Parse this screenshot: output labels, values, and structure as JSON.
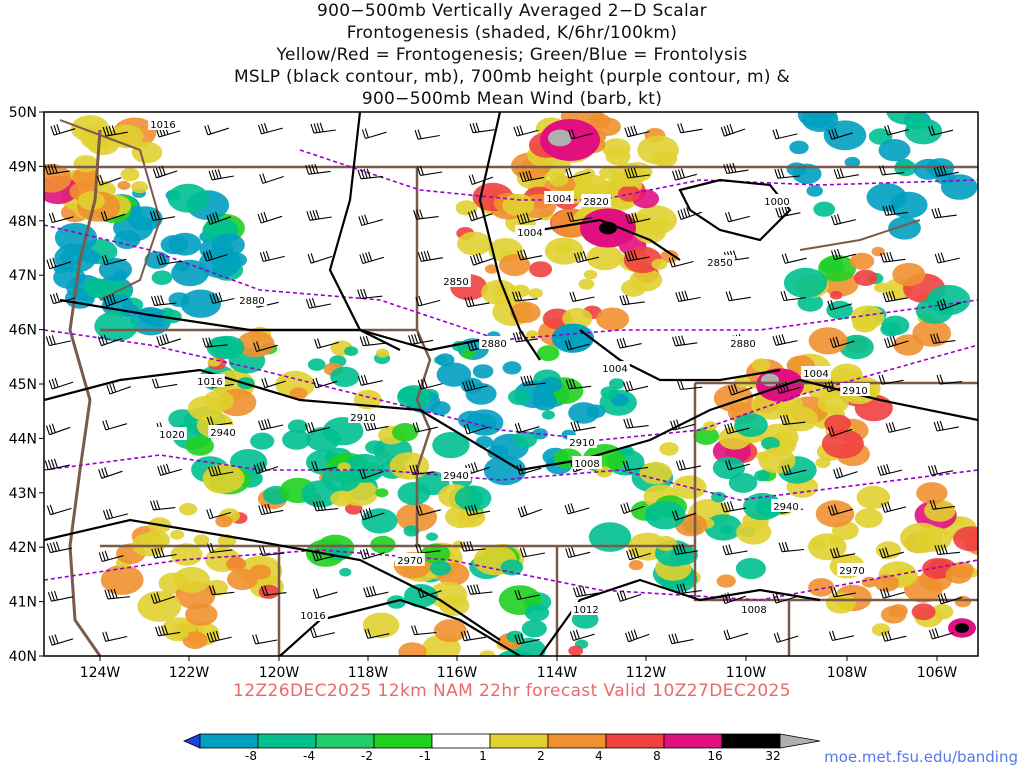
{
  "title_lines": [
    "900−500mb Vertically Averaged 2−D Scalar",
    "Frontogenesis (shaded, K/6hr/100km)",
    "Yellow/Red = Frontogenesis;  Green/Blue = Frontolysis",
    "MSLP (black contour, mb), 700mb height (purple contour, m) &",
    "900−500mb Mean Wind (barb, kt)"
  ],
  "footer": "12Z26DEC2025 12km NAM 22hr forecast Valid 10Z27DEC2025",
  "credit": "moe.met.fsu.edu/banding",
  "map": {
    "lon_range": [
      -125.0,
      -105.0
    ],
    "lat_range": [
      40.0,
      50.0
    ],
    "lat_labels": [
      "50N",
      "49N",
      "48N",
      "47N",
      "46N",
      "45N",
      "44N",
      "43N",
      "42N",
      "41N",
      "40N"
    ],
    "lon_labels": [
      "124W",
      "122W",
      "120W",
      "118W",
      "116W",
      "114W",
      "112W",
      "110W",
      "108W",
      "106W"
    ],
    "mslp_labels": [
      "1016",
      "1004",
      "1004",
      "1000",
      "1004",
      "1016",
      "1020",
      "1004",
      "1008",
      "1012",
      "1016",
      "1008"
    ],
    "height_labels": [
      "2820",
      "2850",
      "2850",
      "2880",
      "2880",
      "2880",
      "2910",
      "2910",
      "2910",
      "2940",
      "2940",
      "2940",
      "2970",
      "2970"
    ],
    "colors": {
      "frontolysis": [
        "#2040e0",
        "#00a0c0",
        "#00c090",
        "#20d020"
      ],
      "frontogenesis": [
        "#e0d030",
        "#f09030",
        "#f04040",
        "#e01080",
        "#000000",
        "#b0b0b0"
      ],
      "mslp": "#000000",
      "height": "#9900cc",
      "borders": "#7a5a4a"
    }
  },
  "colorbar": {
    "labels": [
      "-8",
      "-4",
      "-2",
      "-1",
      "1",
      "2",
      "4",
      "8",
      "16",
      "32"
    ],
    "colors": [
      "#2040e0",
      "#00a0c0",
      "#00c090",
      "#22cc66",
      "#20d020",
      "#ffffff",
      "#e0d030",
      "#f09030",
      "#f04040",
      "#e01080",
      "#000000",
      "#b0b0b0"
    ]
  }
}
